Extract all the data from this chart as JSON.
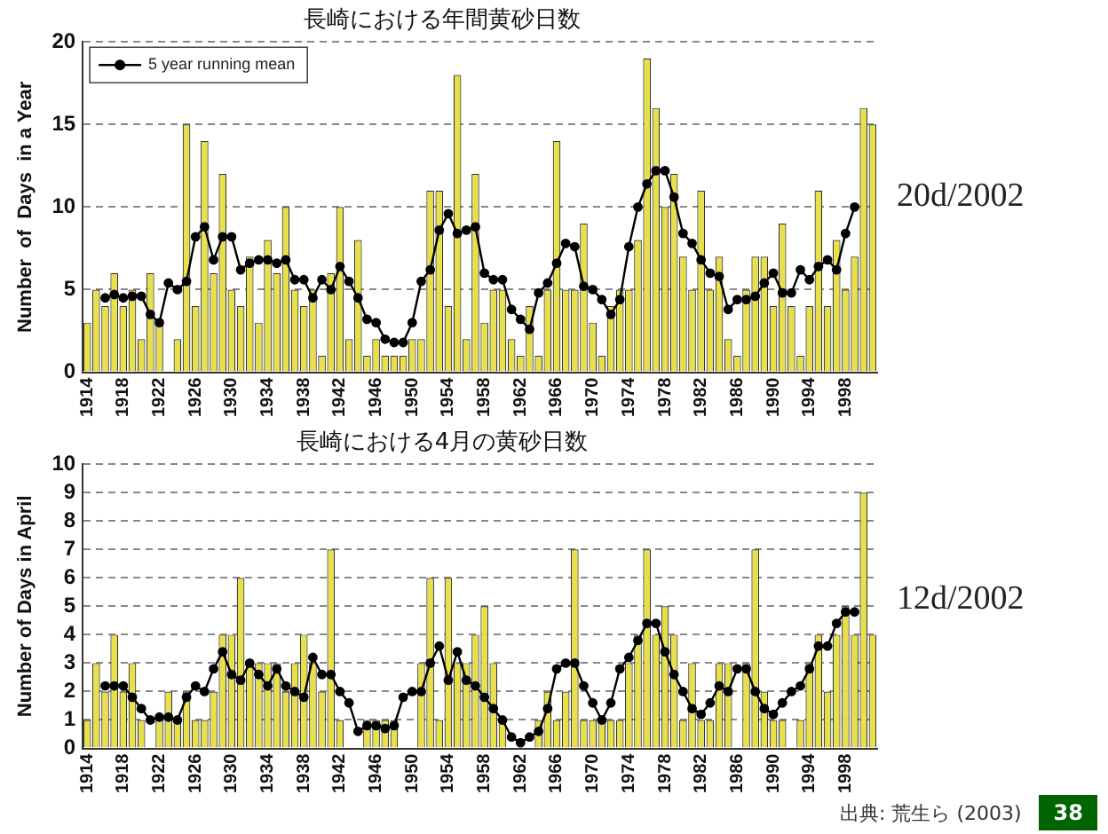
{
  "chart_data": [
    {
      "type": "bar",
      "title": "長崎における年間黄砂日数",
      "ylabel": "Number  of  Days  in a Year",
      "legend": "top left",
      "grid": "y",
      "marker": "circle",
      "xlim": [
        1913.5,
        2001.5
      ],
      "xticks": [
        1914,
        1918,
        1922,
        1926,
        1930,
        1934,
        1938,
        1942,
        1946,
        1950,
        1954,
        1958,
        1962,
        1966,
        1970,
        1974,
        1978,
        1982,
        1986,
        1990,
        1994,
        1998
      ],
      "ylim": [
        0,
        20
      ],
      "yticks": [
        0,
        5,
        10,
        15,
        20
      ],
      "annotations": [
        "20d/2002"
      ],
      "series": [
        {
          "color": "#e8e04a",
          "x": [
            1914,
            1915,
            1916,
            1917,
            1918,
            1919,
            1920,
            1921,
            1922,
            1923,
            1924,
            1925,
            1926,
            1927,
            1928,
            1929,
            1930,
            1931,
            1932,
            1933,
            1934,
            1935,
            1936,
            1937,
            1938,
            1939,
            1940,
            1941,
            1942,
            1943,
            1944,
            1945,
            1946,
            1947,
            1948,
            1949,
            1950,
            1951,
            1952,
            1953,
            1954,
            1955,
            1956,
            1957,
            1958,
            1959,
            1960,
            1961,
            1962,
            1963,
            1964,
            1965,
            1966,
            1967,
            1968,
            1969,
            1970,
            1971,
            1972,
            1973,
            1974,
            1975,
            1976,
            1977,
            1978,
            1979,
            1980,
            1981,
            1982,
            1983,
            1984,
            1985,
            1986,
            1987,
            1988,
            1989,
            1990,
            1991,
            1992,
            1993,
            1994,
            1995,
            1996,
            1997,
            1998,
            1999,
            2000,
            2001
          ],
          "values": [
            3,
            5,
            4,
            6,
            4,
            5,
            2,
            6,
            3,
            0,
            2,
            15,
            4,
            14,
            6,
            12,
            5,
            4,
            7,
            3,
            8,
            6,
            10,
            5,
            4,
            5,
            1,
            6,
            10,
            2,
            8,
            1,
            2,
            1,
            1,
            1,
            2,
            2,
            11,
            11,
            4,
            18,
            2,
            12,
            3,
            5,
            5,
            2,
            1,
            4,
            1,
            5,
            14,
            5,
            5,
            9,
            3,
            1,
            4,
            5,
            5,
            8,
            19,
            16,
            10,
            12,
            7,
            5,
            11,
            5,
            7,
            2,
            1,
            5,
            7,
            7,
            4,
            9,
            4,
            1,
            4,
            11,
            4,
            8,
            5,
            7,
            16,
            15
          ]
        },
        {
          "type": "line",
          "name": "5 year running mean",
          "color": "#000000",
          "x": [
            1916,
            1917,
            1918,
            1919,
            1920,
            1921,
            1922,
            1923,
            1924,
            1925,
            1926,
            1927,
            1928,
            1929,
            1930,
            1931,
            1932,
            1933,
            1934,
            1935,
            1936,
            1937,
            1938,
            1939,
            1940,
            1941,
            1942,
            1943,
            1944,
            1945,
            1946,
            1947,
            1948,
            1949,
            1950,
            1951,
            1952,
            1953,
            1954,
            1955,
            1956,
            1957,
            1958,
            1959,
            1960,
            1961,
            1962,
            1963,
            1964,
            1965,
            1966,
            1967,
            1968,
            1969,
            1970,
            1971,
            1972,
            1973,
            1974,
            1975,
            1976,
            1977,
            1978,
            1979,
            1980,
            1981,
            1982,
            1983,
            1984,
            1985,
            1986,
            1987,
            1988,
            1989,
            1990,
            1991,
            1992,
            1993,
            1994,
            1995,
            1996,
            1997,
            1998,
            1999
          ],
          "values": [
            4.5,
            4.7,
            4.5,
            4.6,
            4.6,
            3.5,
            3.0,
            5.4,
            5.0,
            5.5,
            8.2,
            8.8,
            6.8,
            8.2,
            8.2,
            6.2,
            6.6,
            6.8,
            6.8,
            6.6,
            6.8,
            5.6,
            5.6,
            4.5,
            5.6,
            5.0,
            6.4,
            5.5,
            4.5,
            3.2,
            3.0,
            2.0,
            1.8,
            1.8,
            3.0,
            5.5,
            6.2,
            8.6,
            9.6,
            8.4,
            8.6,
            8.8,
            6.0,
            5.6,
            5.6,
            3.8,
            3.2,
            2.6,
            4.8,
            5.4,
            6.6,
            7.8,
            7.6,
            5.2,
            5.0,
            4.4,
            3.5,
            4.4,
            7.6,
            10.0,
            11.4,
            12.2,
            12.2,
            10.6,
            8.4,
            7.8,
            6.8,
            6.0,
            5.8,
            3.8,
            4.4,
            4.4,
            4.6,
            5.4,
            6.0,
            4.8,
            4.8,
            6.2,
            5.6,
            6.4,
            6.8,
            6.2,
            8.4,
            10.0
          ]
        }
      ]
    },
    {
      "type": "bar",
      "title": "長崎における4月の黄砂日数",
      "ylabel": "Number of Days in April",
      "grid": "y",
      "marker": "circle",
      "xlim": [
        1913.5,
        2001.5
      ],
      "xticks": [
        1914,
        1918,
        1922,
        1926,
        1930,
        1934,
        1938,
        1942,
        1946,
        1950,
        1954,
        1958,
        1962,
        1966,
        1970,
        1974,
        1978,
        1982,
        1986,
        1990,
        1994,
        1998
      ],
      "ylim": [
        0,
        10
      ],
      "yticks": [
        0,
        1,
        2,
        3,
        4,
        5,
        6,
        7,
        8,
        9,
        10
      ],
      "annotations": [
        "12d/2002",
        "出典: 荒生ら (2003)",
        "38"
      ],
      "series": [
        {
          "color": "#e8e04a",
          "x": [
            1914,
            1915,
            1916,
            1917,
            1918,
            1919,
            1920,
            1921,
            1922,
            1923,
            1924,
            1925,
            1926,
            1927,
            1928,
            1929,
            1930,
            1931,
            1932,
            1933,
            1934,
            1935,
            1936,
            1937,
            1938,
            1939,
            1940,
            1941,
            1942,
            1943,
            1944,
            1945,
            1946,
            1947,
            1948,
            1949,
            1950,
            1951,
            1952,
            1953,
            1954,
            1955,
            1956,
            1957,
            1958,
            1959,
            1960,
            1961,
            1962,
            1963,
            1964,
            1965,
            1966,
            1967,
            1968,
            1969,
            1970,
            1971,
            1972,
            1973,
            1974,
            1975,
            1976,
            1977,
            1978,
            1979,
            1980,
            1981,
            1982,
            1983,
            1984,
            1985,
            1986,
            1987,
            1988,
            1989,
            1990,
            1991,
            1992,
            1993,
            1994,
            1995,
            1996,
            1997,
            1998,
            1999,
            2000,
            2001
          ],
          "values": [
            1,
            3,
            2,
            4,
            2,
            3,
            1,
            0,
            1,
            2,
            1,
            2,
            1,
            1,
            2,
            4,
            4,
            6,
            3,
            3,
            3,
            3,
            2,
            3,
            4,
            3,
            2,
            7,
            1,
            0,
            0,
            1,
            1,
            1,
            1,
            0,
            0,
            3,
            6,
            1,
            6,
            3,
            3,
            4,
            5,
            3,
            1,
            0,
            0,
            0,
            1,
            2,
            1,
            2,
            7,
            1,
            1,
            1,
            1,
            1,
            3,
            4,
            7,
            4,
            5,
            4,
            1,
            3,
            1,
            1,
            3,
            3,
            0,
            3,
            7,
            2,
            1,
            1,
            0,
            1,
            3,
            4,
            2,
            4,
            5,
            4,
            9,
            4
          ]
        },
        {
          "type": "line",
          "color": "#000000",
          "x": [
            1916,
            1917,
            1918,
            1919,
            1920,
            1921,
            1922,
            1923,
            1924,
            1925,
            1926,
            1927,
            1928,
            1929,
            1930,
            1931,
            1932,
            1933,
            1934,
            1935,
            1936,
            1937,
            1938,
            1939,
            1940,
            1941,
            1942,
            1943,
            1944,
            1945,
            1946,
            1947,
            1948,
            1949,
            1950,
            1951,
            1952,
            1953,
            1954,
            1955,
            1956,
            1957,
            1958,
            1959,
            1960,
            1961,
            1962,
            1963,
            1964,
            1965,
            1966,
            1967,
            1968,
            1969,
            1970,
            1971,
            1972,
            1973,
            1974,
            1975,
            1976,
            1977,
            1978,
            1979,
            1980,
            1981,
            1982,
            1983,
            1984,
            1985,
            1986,
            1987,
            1988,
            1989,
            1990,
            1991,
            1992,
            1993,
            1994,
            1995,
            1996,
            1997,
            1998,
            1999
          ],
          "values": [
            2.2,
            2.2,
            2.2,
            1.8,
            1.4,
            1.0,
            1.1,
            1.1,
            1.0,
            1.8,
            2.2,
            2.0,
            2.8,
            3.4,
            2.6,
            2.4,
            3.0,
            2.6,
            2.2,
            2.8,
            2.2,
            2.0,
            1.8,
            3.2,
            2.6,
            2.6,
            2.0,
            1.6,
            0.6,
            0.8,
            0.8,
            0.7,
            0.8,
            1.8,
            2.0,
            2.0,
            3.0,
            3.6,
            2.4,
            3.4,
            2.4,
            2.2,
            1.8,
            1.4,
            1.0,
            0.4,
            0.2,
            0.4,
            0.6,
            1.4,
            2.8,
            3.0,
            3.0,
            2.2,
            1.6,
            1.0,
            1.6,
            2.8,
            3.2,
            3.8,
            4.4,
            4.4,
            3.4,
            2.6,
            2.0,
            1.4,
            1.2,
            1.6,
            2.2,
            2.0,
            2.8,
            2.8,
            2.0,
            1.4,
            1.2,
            1.6,
            2.0,
            2.2,
            2.8,
            3.6,
            3.6,
            4.4,
            4.8,
            4.8
          ]
        }
      ]
    }
  ]
}
